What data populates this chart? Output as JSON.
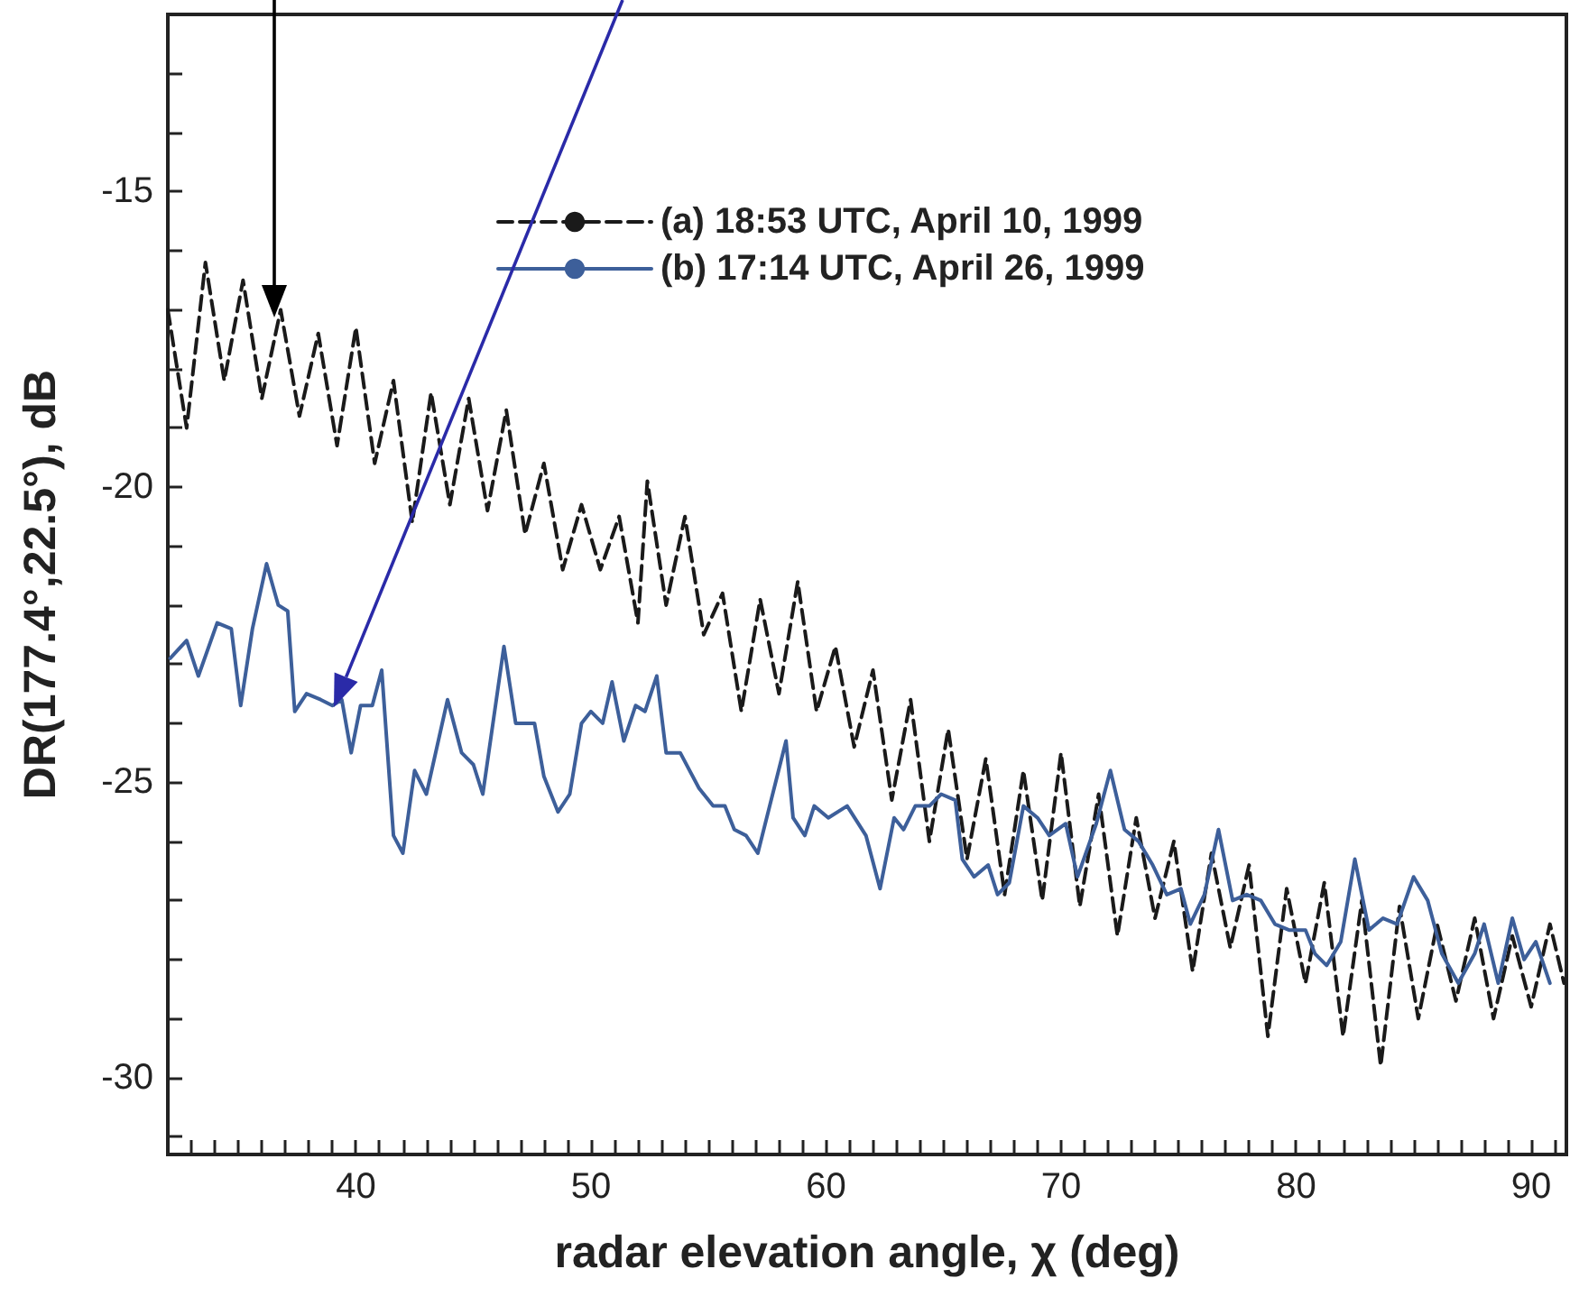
{
  "chart_data": {
    "type": "line",
    "xlabel": "radar elevation angle, χ (deg)",
    "ylabel": "DR(177.4°,22.5°), dB",
    "xlim": [
      32,
      91.5
    ],
    "ylim": [
      -31.3,
      -12
    ],
    "xticks": [
      {
        "value": 33,
        "label": null
      },
      {
        "value": 34,
        "label": null
      },
      {
        "value": 35,
        "label": null
      },
      {
        "value": 36,
        "label": null
      },
      {
        "value": 37,
        "label": null
      },
      {
        "value": 38,
        "label": null
      },
      {
        "value": 39,
        "label": null
      },
      40,
      {
        "value": 41,
        "label": null
      },
      {
        "value": 42,
        "label": null
      },
      {
        "value": 43,
        "label": null
      },
      {
        "value": 44,
        "label": null
      },
      {
        "value": 45,
        "label": null
      },
      {
        "value": 46,
        "label": null
      },
      {
        "value": 47,
        "label": null
      },
      {
        "value": 48,
        "label": null
      },
      {
        "value": 49,
        "label": null
      },
      50,
      {
        "value": 51,
        "label": null
      },
      {
        "value": 52,
        "label": null
      },
      {
        "value": 53,
        "label": null
      },
      {
        "value": 54,
        "label": null
      },
      {
        "value": 55,
        "label": null
      },
      {
        "value": 56,
        "label": null
      },
      {
        "value": 57,
        "label": null
      },
      {
        "value": 58,
        "label": null
      },
      {
        "value": 59,
        "label": null
      },
      60,
      {
        "value": 61,
        "label": null
      },
      {
        "value": 62,
        "label": null
      },
      {
        "value": 63,
        "label": null
      },
      {
        "value": 64,
        "label": null
      },
      {
        "value": 65,
        "label": null
      },
      {
        "value": 66,
        "label": null
      },
      {
        "value": 67,
        "label": null
      },
      {
        "value": 68,
        "label": null
      },
      {
        "value": 69,
        "label": null
      },
      70,
      {
        "value": 71,
        "label": null
      },
      {
        "value": 72,
        "label": null
      },
      {
        "value": 73,
        "label": null
      },
      {
        "value": 74,
        "label": null
      },
      {
        "value": 75,
        "label": null
      },
      {
        "value": 76,
        "label": null
      },
      {
        "value": 77,
        "label": null
      },
      {
        "value": 78,
        "label": null
      },
      {
        "value": 79,
        "label": null
      },
      80,
      {
        "value": 81,
        "label": null
      },
      {
        "value": 82,
        "label": null
      },
      {
        "value": 83,
        "label": null
      },
      {
        "value": 84,
        "label": null
      },
      {
        "value": 85,
        "label": null
      },
      {
        "value": 86,
        "label": null
      },
      {
        "value": 87,
        "label": null
      },
      {
        "value": 88,
        "label": null
      },
      {
        "value": 89,
        "label": null
      },
      90,
      {
        "value": 91,
        "label": null
      }
    ],
    "yticks": [
      {
        "value": -31,
        "label": null
      },
      -30,
      {
        "value": -29,
        "label": null
      },
      {
        "value": -28,
        "label": null
      },
      {
        "value": -27,
        "label": null
      },
      {
        "value": -26,
        "label": null
      },
      -25,
      {
        "value": -24,
        "label": null
      },
      {
        "value": -23,
        "label": null
      },
      {
        "value": -22,
        "label": null
      },
      {
        "value": -21,
        "label": null
      },
      -20,
      {
        "value": -19,
        "label": null
      },
      {
        "value": -18,
        "label": null
      },
      {
        "value": -17,
        "label": null
      },
      {
        "value": -16,
        "label": null
      },
      -15,
      {
        "value": -14,
        "label": null
      },
      {
        "value": -13,
        "label": null
      }
    ],
    "grid": false,
    "legend": "top",
    "marker": "none",
    "series": [
      {
        "name": "(a) 18:53 UTC, April 10, 1999",
        "color": "#1a1a1a",
        "line_style": "dashed",
        "x": [
          32.0,
          32.8,
          33.6,
          34.4,
          35.2,
          36.0,
          36.8,
          37.6,
          38.4,
          39.2,
          40.0,
          40.8,
          41.6,
          42.4,
          43.2,
          44.0,
          44.8,
          45.6,
          46.4,
          47.2,
          48.0,
          48.8,
          49.6,
          50.4,
          51.2,
          52.0,
          52.4,
          53.2,
          54.0,
          54.8,
          55.6,
          56.4,
          57.2,
          58.0,
          58.8,
          59.6,
          60.4,
          61.2,
          62.0,
          62.8,
          63.6,
          64.4,
          65.2,
          66.0,
          66.8,
          67.6,
          68.4,
          69.2,
          70.0,
          70.8,
          71.6,
          72.4,
          73.2,
          74.0,
          74.8,
          75.6,
          76.4,
          77.2,
          78.0,
          78.8,
          79.6,
          80.4,
          81.2,
          82.0,
          82.8,
          83.6,
          84.4,
          85.2,
          86.0,
          86.8,
          87.6,
          88.4,
          89.2,
          90.0,
          90.8,
          91.4
        ],
        "values": [
          -17.0,
          -19.0,
          -16.2,
          -18.2,
          -16.5,
          -18.5,
          -17.0,
          -18.8,
          -17.4,
          -19.3,
          -17.3,
          -19.6,
          -18.2,
          -20.6,
          -18.4,
          -20.3,
          -18.5,
          -20.4,
          -18.7,
          -20.8,
          -19.6,
          -21.4,
          -20.3,
          -21.4,
          -20.5,
          -22.3,
          -19.9,
          -22.0,
          -20.5,
          -22.5,
          -21.8,
          -23.8,
          -21.9,
          -23.5,
          -21.6,
          -23.8,
          -22.7,
          -24.4,
          -23.1,
          -25.3,
          -23.6,
          -26.0,
          -24.1,
          -26.3,
          -24.6,
          -26.9,
          -24.8,
          -27.0,
          -24.5,
          -27.1,
          -25.2,
          -27.6,
          -25.6,
          -27.3,
          -26.0,
          -28.2,
          -26.2,
          -27.8,
          -26.4,
          -29.3,
          -26.8,
          -28.4,
          -26.7,
          -29.3,
          -27.0,
          -29.8,
          -27.1,
          -29.0,
          -27.4,
          -28.7,
          -27.3,
          -29.0,
          -27.6,
          -28.8,
          -27.4,
          -28.4
        ]
      },
      {
        "name": "(b) 17:14 UTC, April 26, 1999",
        "color": "#3d5f9a",
        "line_style": "solid",
        "x": [
          32.1,
          32.8,
          33.3,
          34.1,
          34.7,
          35.1,
          35.6,
          36.2,
          36.7,
          37.1,
          37.4,
          37.9,
          38.5,
          39.0,
          39.4,
          39.8,
          40.2,
          40.7,
          41.1,
          41.6,
          42.0,
          42.5,
          43.0,
          43.9,
          44.5,
          45.0,
          45.4,
          46.3,
          46.8,
          47.6,
          48.0,
          48.6,
          49.1,
          49.6,
          50.0,
          50.5,
          50.9,
          51.4,
          51.9,
          52.3,
          52.8,
          53.2,
          53.8,
          54.6,
          55.2,
          55.7,
          56.1,
          56.6,
          57.1,
          58.3,
          58.6,
          59.1,
          59.5,
          60.1,
          60.9,
          61.7,
          62.3,
          62.9,
          63.3,
          63.8,
          64.4,
          64.9,
          65.5,
          65.8,
          66.3,
          66.9,
          67.3,
          67.8,
          68.4,
          69.0,
          69.5,
          70.2,
          70.7,
          71.5,
          72.1,
          72.7,
          73.3,
          73.9,
          74.5,
          75.1,
          75.5,
          76.1,
          76.7,
          77.3,
          77.9,
          78.5,
          79.1,
          79.7,
          80.4,
          80.8,
          81.3,
          81.9,
          82.5,
          83.1,
          83.7,
          84.3,
          85.0,
          85.6,
          86.2,
          86.9,
          87.6,
          88.0,
          88.6,
          89.2,
          89.7,
          90.2,
          90.8
        ],
        "values": [
          -22.9,
          -22.6,
          -23.2,
          -22.3,
          -22.4,
          -23.7,
          -22.4,
          -21.3,
          -22.0,
          -22.1,
          -23.8,
          -23.5,
          -23.6,
          -23.7,
          -23.6,
          -24.5,
          -23.7,
          -23.7,
          -23.1,
          -25.9,
          -26.2,
          -24.8,
          -25.2,
          -23.6,
          -24.5,
          -24.7,
          -25.2,
          -22.7,
          -24.0,
          -24.0,
          -24.9,
          -25.5,
          -25.2,
          -24.0,
          -23.8,
          -24.0,
          -23.3,
          -24.3,
          -23.7,
          -23.8,
          -23.2,
          -24.5,
          -24.5,
          -25.1,
          -25.4,
          -25.4,
          -25.8,
          -25.9,
          -26.2,
          -24.3,
          -25.6,
          -25.9,
          -25.4,
          -25.6,
          -25.4,
          -25.9,
          -26.8,
          -25.6,
          -25.8,
          -25.4,
          -25.4,
          -25.2,
          -25.3,
          -26.3,
          -26.6,
          -26.4,
          -26.9,
          -26.7,
          -25.4,
          -25.6,
          -25.9,
          -25.7,
          -26.6,
          -25.7,
          -24.8,
          -25.8,
          -26.0,
          -26.4,
          -26.9,
          -26.8,
          -27.4,
          -26.9,
          -25.8,
          -27.0,
          -26.9,
          -27.0,
          -27.4,
          -27.5,
          -27.5,
          -27.9,
          -28.1,
          -27.7,
          -26.3,
          -27.5,
          -27.3,
          -27.4,
          -26.6,
          -27.0,
          -27.9,
          -28.4,
          -27.9,
          -27.4,
          -28.4,
          -27.3,
          -28.0,
          -27.7,
          -28.4
        ]
      }
    ]
  }
}
